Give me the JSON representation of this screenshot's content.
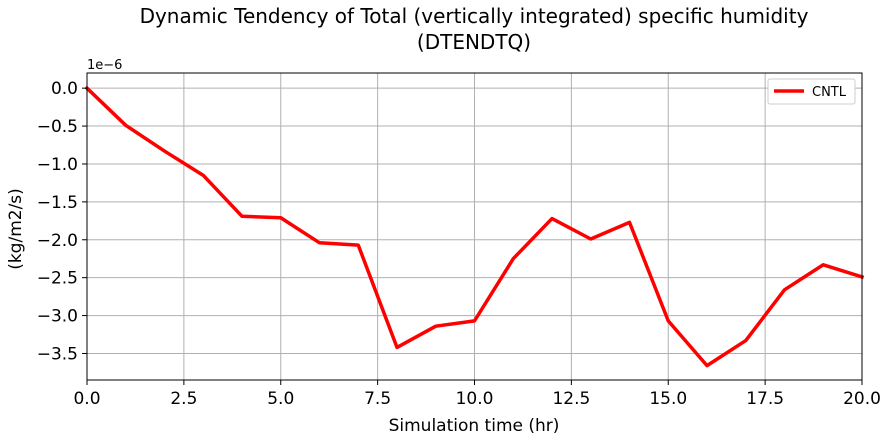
{
  "chart_data": {
    "type": "line",
    "title_line1": "Dynamic Tendency of Total (vertically integrated) specific humidity",
    "title_line2": "(DTENDTQ)",
    "xlabel": "Simulation time (hr)",
    "ylabel": "(kg/m2/s)",
    "y_offset_label": "1e−6",
    "xlim": [
      0,
      20
    ],
    "ylim": [
      -3.85,
      0.2
    ],
    "x_ticks": [
      0,
      2.5,
      5,
      7.5,
      10,
      12.5,
      15,
      17.5,
      20
    ],
    "x_tick_labels": [
      "0.0",
      "2.5",
      "5.0",
      "7.5",
      "10.0",
      "12.5",
      "15.0",
      "17.5",
      "20.0"
    ],
    "y_ticks": [
      0,
      -0.5,
      -1,
      -1.5,
      -2,
      -2.5,
      -3,
      -3.5
    ],
    "y_tick_labels": [
      "0.0",
      "−0.5",
      "−1.0",
      "−1.5",
      "−2.0",
      "−2.5",
      "−3.0",
      "−3.5"
    ],
    "grid": true,
    "legend_position": "top-right",
    "series": [
      {
        "name": "CNTL",
        "color": "#ff0000",
        "x": [
          0,
          1,
          2,
          3,
          4,
          5,
          6,
          7,
          8,
          9,
          10,
          11,
          12,
          13,
          14,
          15,
          16,
          17,
          18,
          19,
          20
        ],
        "y": [
          0.0,
          -0.49,
          -0.83,
          -1.15,
          -1.69,
          -1.71,
          -2.04,
          -2.07,
          -3.42,
          -3.14,
          -3.07,
          -2.25,
          -1.72,
          -1.99,
          -1.77,
          -3.07,
          -3.66,
          -3.33,
          -2.66,
          -2.33,
          -2.49
        ]
      }
    ]
  }
}
